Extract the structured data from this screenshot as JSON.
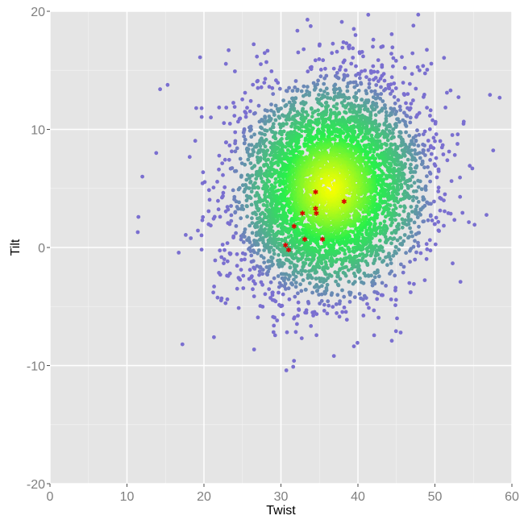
{
  "chart_data": {
    "type": "scatter",
    "title": "",
    "xlabel": "Twist",
    "ylabel": "Tilt",
    "xlim": [
      0,
      60
    ],
    "ylim": [
      -20,
      20
    ],
    "x_ticks": [
      0,
      10,
      20,
      30,
      40,
      50,
      60
    ],
    "y_ticks": [
      -20,
      -10,
      0,
      10,
      20
    ],
    "x_tick_labels": [
      "0",
      "10",
      "20",
      "30",
      "40",
      "50",
      "60"
    ],
    "y_tick_labels": [
      "-20",
      "-10",
      "0",
      "10",
      "20"
    ],
    "grid": true,
    "panel_background": "#e5e5e5",
    "grid_color": "#ffffff",
    "colors": {
      "low_density": "#7a6fd0",
      "mid_density": "#27f04a",
      "high_density": "#f8ff00",
      "highlight": "#dd0000"
    },
    "point_cloud": {
      "description_of_shape": "bivariate normal",
      "center": [
        36.5,
        5.0
      ],
      "sd": [
        6.0,
        4.4
      ],
      "correlation": 0.15,
      "count": 5000
    },
    "sparse_points": [
      [
        19.5,
        16.1
      ],
      [
        23.2,
        16.7
      ],
      [
        14.3,
        13.4
      ],
      [
        48.0,
        15.0
      ],
      [
        42.0,
        17.6
      ],
      [
        11.4,
        1.3
      ],
      [
        17.2,
        -8.2
      ],
      [
        44.4,
        -7.9
      ],
      [
        30.7,
        -10.4
      ],
      [
        31.7,
        -9.6
      ],
      [
        47.8,
        0.4
      ],
      [
        48.2,
        3.2
      ],
      [
        48.4,
        7.3
      ],
      [
        12.0,
        6.0
      ],
      [
        13.8,
        8.0
      ],
      [
        19.0,
        11.8
      ],
      [
        21.3,
        -7.6
      ],
      [
        38.5,
        17.3
      ],
      [
        35.0,
        17.1
      ],
      [
        50.0,
        9.0
      ]
    ],
    "highlight_points": [
      [
        34.5,
        4.7
      ],
      [
        38.2,
        3.9
      ],
      [
        32.8,
        2.9
      ],
      [
        34.5,
        3.3
      ],
      [
        34.6,
        2.9
      ],
      [
        31.7,
        1.8
      ],
      [
        33.1,
        0.7
      ],
      [
        35.4,
        0.7
      ],
      [
        30.6,
        0.2
      ],
      [
        31.0,
        -0.2
      ]
    ]
  }
}
